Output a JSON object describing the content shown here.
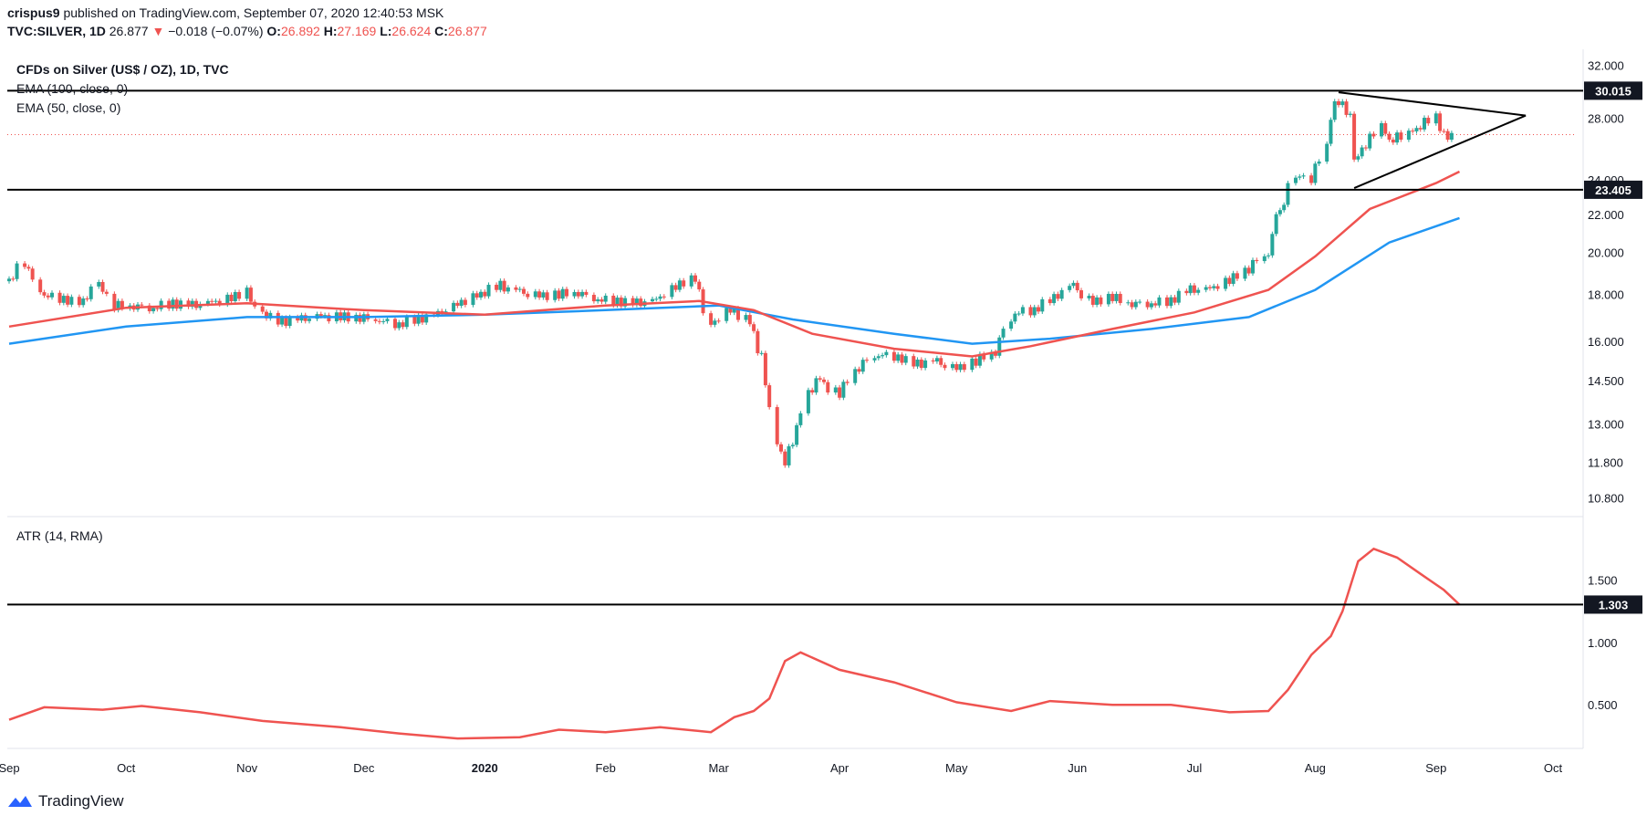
{
  "header": {
    "author": "crispus9",
    "published": "published on TradingView.com, September 07, 2020 12:40:53 MSK",
    "symbol": "TVC:SILVER, 1D",
    "last": "26.877",
    "change_arrow": "▼",
    "change": "−0.018 (−0.07%)",
    "o_label": "O:",
    "o_value": "26.892",
    "h_label": "H:",
    "h_value": "27.169",
    "l_label": "L:",
    "l_value": "26.624",
    "c_label": "C:",
    "c_value": "26.877"
  },
  "legend": {
    "title": "CFDs on Silver (US$ / OZ), 1D, TVC",
    "ema100": "EMA (100, close, 0)",
    "ema50": "EMA (50, close, 0)",
    "atr": "ATR (14, RMA)"
  },
  "footer": {
    "brand": "TradingView"
  },
  "colors": {
    "up": "#26a69a",
    "down": "#ef5350",
    "ema50": "#ef5350",
    "ema100": "#2196f3",
    "atr": "#ef5350",
    "level": "#000000",
    "grid": "#e0e3eb"
  },
  "chart_data": [
    {
      "type": "candlestick",
      "title": "CFDs on Silver (US$ / OZ), 1D, TVC",
      "y_scale": "log",
      "ylim": [
        10.3,
        32.7
      ],
      "y_ticks": [
        "32.000",
        "28.000",
        "24.000",
        "22.000",
        "20.000",
        "18.000",
        "16.000",
        "14.500",
        "13.000",
        "11.800",
        "10.800"
      ],
      "x_ticks": [
        "Sep",
        "Oct",
        "Nov",
        "Dec",
        "2020",
        "Feb",
        "Mar",
        "Apr",
        "May",
        "Jun",
        "Jul",
        "Aug",
        "Sep",
        "Oct"
      ],
      "horizontal_levels": [
        {
          "value": 30.015,
          "label": "30.015"
        },
        {
          "value": 23.405,
          "label": "23.405"
        }
      ],
      "last_price": 26.877,
      "triangle": {
        "apex_date": "2020-09-24",
        "upper": [
          [
            "2020-08-07",
            29.9
          ],
          [
            "2020-09-24",
            28.2
          ]
        ],
        "lower": [
          [
            "2020-08-11",
            23.5
          ],
          [
            "2020-09-24",
            28.2
          ]
        ]
      },
      "closes": [
        [
          "2019-09-01",
          18.6
        ],
        [
          "2019-09-05",
          19.5
        ],
        [
          "2019-09-10",
          18.0
        ],
        [
          "2019-09-15",
          17.8
        ],
        [
          "2019-09-20",
          17.6
        ],
        [
          "2019-09-24",
          18.6
        ],
        [
          "2019-09-28",
          17.5
        ],
        [
          "2019-10-03",
          17.5
        ],
        [
          "2019-10-08",
          17.4
        ],
        [
          "2019-10-13",
          17.6
        ],
        [
          "2019-10-18",
          17.5
        ],
        [
          "2019-10-23",
          17.6
        ],
        [
          "2019-10-28",
          17.8
        ],
        [
          "2019-11-01",
          18.1
        ],
        [
          "2019-11-05",
          17.2
        ],
        [
          "2019-11-10",
          16.8
        ],
        [
          "2019-11-15",
          16.9
        ],
        [
          "2019-11-20",
          17.0
        ],
        [
          "2019-11-25",
          17.0
        ],
        [
          "2019-11-30",
          17.0
        ],
        [
          "2019-12-05",
          16.9
        ],
        [
          "2019-12-10",
          16.7
        ],
        [
          "2019-12-15",
          16.9
        ],
        [
          "2019-12-20",
          17.1
        ],
        [
          "2019-12-25",
          17.5
        ],
        [
          "2019-12-31",
          18.0
        ],
        [
          "2020-01-05",
          18.4
        ],
        [
          "2020-01-10",
          18.1
        ],
        [
          "2020-01-15",
          17.9
        ],
        [
          "2020-01-20",
          18.0
        ],
        [
          "2020-01-25",
          18.1
        ],
        [
          "2020-01-30",
          17.8
        ],
        [
          "2020-02-04",
          17.7
        ],
        [
          "2020-02-09",
          17.6
        ],
        [
          "2020-02-14",
          17.7
        ],
        [
          "2020-02-19",
          18.3
        ],
        [
          "2020-02-24",
          18.8
        ],
        [
          "2020-02-28",
          16.6
        ],
        [
          "2020-03-04",
          17.3
        ],
        [
          "2020-03-09",
          16.9
        ],
        [
          "2020-03-12",
          15.5
        ],
        [
          "2020-03-16",
          12.5
        ],
        [
          "2020-03-18",
          11.8
        ],
        [
          "2020-03-20",
          12.3
        ],
        [
          "2020-03-24",
          14.0
        ],
        [
          "2020-03-27",
          14.5
        ],
        [
          "2020-04-01",
          14.0
        ],
        [
          "2020-04-06",
          15.0
        ],
        [
          "2020-04-11",
          15.5
        ],
        [
          "2020-04-16",
          15.4
        ],
        [
          "2020-04-21",
          15.1
        ],
        [
          "2020-04-26",
          15.2
        ],
        [
          "2020-05-01",
          14.9
        ],
        [
          "2020-05-06",
          15.2
        ],
        [
          "2020-05-11",
          15.6
        ],
        [
          "2020-05-16",
          17.2
        ],
        [
          "2020-05-21",
          17.3
        ],
        [
          "2020-05-26",
          17.8
        ],
        [
          "2020-05-31",
          18.4
        ],
        [
          "2020-06-05",
          17.6
        ],
        [
          "2020-06-10",
          17.9
        ],
        [
          "2020-06-15",
          17.6
        ],
        [
          "2020-06-20",
          17.6
        ],
        [
          "2020-06-25",
          17.7
        ],
        [
          "2020-06-30",
          18.2
        ],
        [
          "2020-07-05",
          18.2
        ],
        [
          "2020-07-10",
          18.6
        ],
        [
          "2020-07-15",
          19.2
        ],
        [
          "2020-07-20",
          20.0
        ],
        [
          "2020-07-23",
          22.0
        ],
        [
          "2020-07-27",
          24.3
        ],
        [
          "2020-07-31",
          24.0
        ],
        [
          "2020-08-04",
          26.0
        ],
        [
          "2020-08-06",
          28.9
        ],
        [
          "2020-08-07",
          29.2
        ],
        [
          "2020-08-10",
          28.5
        ],
        [
          "2020-08-11",
          25.0
        ],
        [
          "2020-08-14",
          26.2
        ],
        [
          "2020-08-18",
          27.4
        ],
        [
          "2020-08-21",
          26.6
        ],
        [
          "2020-08-25",
          26.9
        ],
        [
          "2020-08-28",
          27.5
        ],
        [
          "2020-09-01",
          28.1
        ],
        [
          "2020-09-03",
          26.8
        ],
        [
          "2020-09-07",
          26.877
        ]
      ],
      "ema50": [
        [
          "2019-09-01",
          16.6
        ],
        [
          "2019-10-01",
          17.4
        ],
        [
          "2019-11-01",
          17.6
        ],
        [
          "2019-12-01",
          17.3
        ],
        [
          "2020-01-01",
          17.1
        ],
        [
          "2020-02-01",
          17.5
        ],
        [
          "2020-02-25",
          17.7
        ],
        [
          "2020-03-10",
          17.3
        ],
        [
          "2020-03-25",
          16.3
        ],
        [
          "2020-04-15",
          15.7
        ],
        [
          "2020-05-05",
          15.4
        ],
        [
          "2020-05-20",
          15.8
        ],
        [
          "2020-06-10",
          16.5
        ],
        [
          "2020-07-01",
          17.2
        ],
        [
          "2020-07-20",
          18.2
        ],
        [
          "2020-08-01",
          19.8
        ],
        [
          "2020-08-15",
          22.3
        ],
        [
          "2020-09-01",
          23.8
        ],
        [
          "2020-09-07",
          24.5
        ]
      ],
      "ema100": [
        [
          "2019-09-01",
          15.9
        ],
        [
          "2019-10-01",
          16.6
        ],
        [
          "2019-11-01",
          17.0
        ],
        [
          "2019-12-01",
          17.0
        ],
        [
          "2020-01-01",
          17.1
        ],
        [
          "2020-02-01",
          17.3
        ],
        [
          "2020-03-01",
          17.5
        ],
        [
          "2020-03-20",
          16.9
        ],
        [
          "2020-04-15",
          16.3
        ],
        [
          "2020-05-05",
          15.9
        ],
        [
          "2020-05-25",
          16.1
        ],
        [
          "2020-06-20",
          16.5
        ],
        [
          "2020-07-15",
          17.0
        ],
        [
          "2020-08-01",
          18.2
        ],
        [
          "2020-08-20",
          20.5
        ],
        [
          "2020-09-07",
          21.8
        ]
      ]
    },
    {
      "type": "line",
      "title": "ATR (14, RMA)",
      "ylim": [
        0.15,
        1.95
      ],
      "y_ticks": [
        "1.500",
        "1.000",
        "0.500"
      ],
      "horizontal_levels": [
        {
          "value": 1.303,
          "label": "1.303"
        }
      ],
      "values": [
        [
          "2019-09-01",
          0.38
        ],
        [
          "2019-09-10",
          0.48
        ],
        [
          "2019-09-25",
          0.46
        ],
        [
          "2019-10-05",
          0.49
        ],
        [
          "2019-10-20",
          0.44
        ],
        [
          "2019-11-05",
          0.37
        ],
        [
          "2019-11-25",
          0.32
        ],
        [
          "2019-12-10",
          0.27
        ],
        [
          "2019-12-25",
          0.23
        ],
        [
          "2020-01-10",
          0.24
        ],
        [
          "2020-01-20",
          0.3
        ],
        [
          "2020-02-01",
          0.28
        ],
        [
          "2020-02-15",
          0.32
        ],
        [
          "2020-02-28",
          0.28
        ],
        [
          "2020-03-05",
          0.4
        ],
        [
          "2020-03-10",
          0.45
        ],
        [
          "2020-03-14",
          0.55
        ],
        [
          "2020-03-18",
          0.85
        ],
        [
          "2020-03-22",
          0.92
        ],
        [
          "2020-04-01",
          0.78
        ],
        [
          "2020-04-15",
          0.68
        ],
        [
          "2020-05-01",
          0.52
        ],
        [
          "2020-05-15",
          0.45
        ],
        [
          "2020-05-25",
          0.53
        ],
        [
          "2020-06-10",
          0.5
        ],
        [
          "2020-06-25",
          0.5
        ],
        [
          "2020-07-10",
          0.44
        ],
        [
          "2020-07-20",
          0.45
        ],
        [
          "2020-07-25",
          0.62
        ],
        [
          "2020-07-31",
          0.9
        ],
        [
          "2020-08-05",
          1.05
        ],
        [
          "2020-08-08",
          1.25
        ],
        [
          "2020-08-12",
          1.65
        ],
        [
          "2020-08-16",
          1.75
        ],
        [
          "2020-08-22",
          1.68
        ],
        [
          "2020-08-28",
          1.55
        ],
        [
          "2020-09-03",
          1.42
        ],
        [
          "2020-09-07",
          1.303
        ]
      ]
    }
  ]
}
